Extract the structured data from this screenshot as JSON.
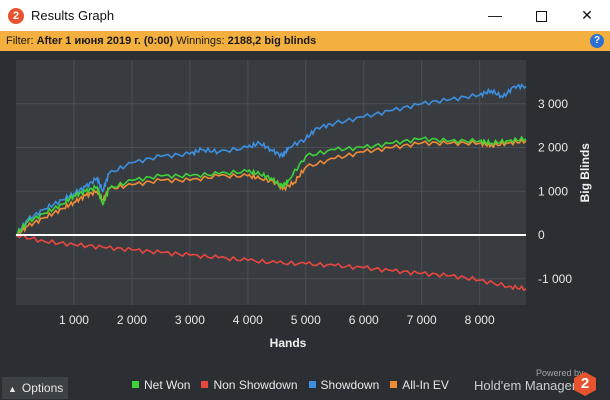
{
  "window": {
    "title": "Results Graph",
    "app_icon": "2",
    "controls": {
      "minimize": "—",
      "maximize": "",
      "close": "✕"
    }
  },
  "filter": {
    "label": "Filter:",
    "value": "After 1 июня 2019 г. (0:00)",
    "winnings_label": "Winnings:",
    "winnings_value": "2188,2 big blinds",
    "help_icon": "?"
  },
  "colors": {
    "net_won": "#3fd13a",
    "non_showdown": "#e8473f",
    "showdown": "#3d8fe0",
    "all_in_ev": "#ef8a35",
    "zero_line": "#ffffff",
    "plot_bg": "#383c40",
    "grid": "#4a4f54"
  },
  "chart_data": {
    "type": "line",
    "xlabel": "Hands",
    "ylabel": "Big Blinds",
    "xlim": [
      0,
      8800
    ],
    "ylim": [
      -1600,
      4000
    ],
    "x_ticks": [
      1000,
      2000,
      3000,
      4000,
      5000,
      6000,
      7000,
      8000
    ],
    "x_tick_labels": [
      "1 000",
      "2 000",
      "3 000",
      "4 000",
      "5 000",
      "6 000",
      "7 000",
      "8 000"
    ],
    "y_ticks": [
      -1000,
      0,
      1000,
      2000,
      3000
    ],
    "y_tick_labels": [
      "-1 000",
      "0",
      "1 000",
      "2 000",
      "3 000"
    ],
    "grid": true,
    "legend_placement": "bottom",
    "series": [
      {
        "name": "Non Showdown",
        "key": "non_showdown",
        "x": [
          0,
          500,
          1000,
          1500,
          2000,
          2500,
          3000,
          3500,
          4000,
          4500,
          5000,
          5500,
          6000,
          6500,
          7000,
          7500,
          8000,
          8500,
          8800
        ],
        "y": [
          0,
          -150,
          -220,
          -280,
          -340,
          -400,
          -460,
          -520,
          -580,
          -640,
          -660,
          -700,
          -750,
          -820,
          -880,
          -930,
          -1030,
          -1180,
          -1230
        ]
      },
      {
        "name": "Showdown",
        "key": "showdown",
        "x": [
          0,
          200,
          500,
          800,
          1000,
          1200,
          1400,
          1500,
          1600,
          2000,
          2500,
          3000,
          3200,
          3500,
          4000,
          4200,
          4400,
          4600,
          4700,
          5000,
          5200,
          5500,
          6000,
          6500,
          7000,
          7500,
          8000,
          8200,
          8400,
          8600,
          8800
        ],
        "y": [
          0,
          350,
          600,
          800,
          950,
          1100,
          1300,
          1000,
          1400,
          1650,
          1800,
          1850,
          1950,
          1900,
          2000,
          2100,
          1950,
          1800,
          2000,
          2200,
          2450,
          2550,
          2700,
          2850,
          3000,
          3100,
          3200,
          3300,
          3150,
          3400,
          3400
        ]
      },
      {
        "name": "All-In EV",
        "key": "all_in_ev",
        "x": [
          0,
          200,
          500,
          800,
          1000,
          1200,
          1400,
          1500,
          1600,
          2000,
          2500,
          3000,
          3500,
          4000,
          4200,
          4500,
          4600,
          4800,
          5000,
          5500,
          6000,
          6500,
          7000,
          7500,
          8000,
          8200,
          8500,
          8800
        ],
        "y": [
          0,
          200,
          400,
          600,
          750,
          900,
          1000,
          800,
          1050,
          1150,
          1250,
          1250,
          1350,
          1350,
          1300,
          1200,
          1050,
          1200,
          1550,
          1750,
          1900,
          2000,
          2100,
          2100,
          2100,
          2050,
          2100,
          2150
        ]
      },
      {
        "name": "Net Won",
        "key": "net_won",
        "x": [
          0,
          200,
          500,
          800,
          1000,
          1200,
          1400,
          1500,
          1600,
          2000,
          2500,
          3000,
          3500,
          4000,
          4200,
          4400,
          4600,
          4700,
          5000,
          5500,
          6000,
          6500,
          7000,
          7500,
          8000,
          8200,
          8500,
          8800
        ],
        "y": [
          0,
          300,
          500,
          700,
          900,
          1000,
          1100,
          700,
          1050,
          1250,
          1350,
          1350,
          1400,
          1450,
          1400,
          1300,
          1100,
          1250,
          1800,
          1950,
          2000,
          2100,
          2200,
          2150,
          2150,
          2100,
          2150,
          2200
        ]
      }
    ]
  },
  "footer": {
    "options_label": "Options",
    "legend": [
      {
        "label": "Net Won",
        "key": "net_won"
      },
      {
        "label": "Non Showdown",
        "key": "non_showdown"
      },
      {
        "label": "Showdown",
        "key": "showdown"
      },
      {
        "label": "All-In EV",
        "key": "all_in_ev"
      }
    ],
    "powered_by": "Powered by",
    "brand": "Hold'em Manager",
    "brand_logo": "2"
  }
}
